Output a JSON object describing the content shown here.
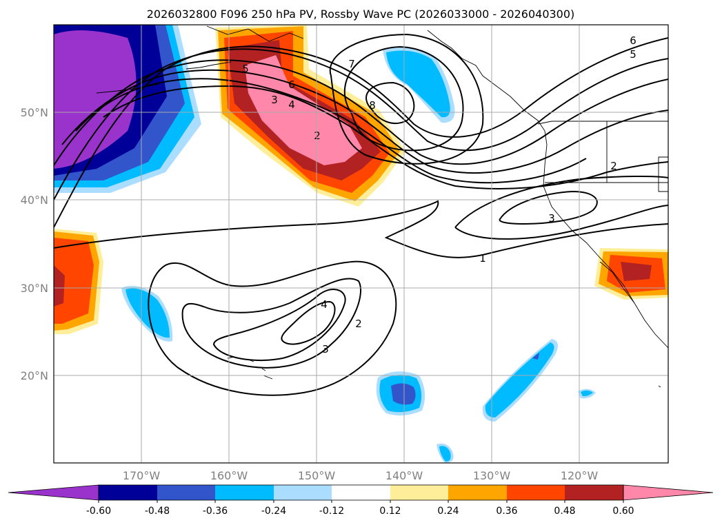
{
  "title": "2026032800 F096 250 hPa PV, Rossby Wave PC (2026033000 - 2026040300)",
  "lat_labels": [
    "50°N",
    "40°N",
    "30°N",
    "20°N"
  ],
  "lon_labels": [
    "170°W",
    "160°W",
    "150°W",
    "140°W",
    "130°W",
    "120°W"
  ],
  "colorbar": {
    "tick_labels": [
      "-0.60",
      "-0.48",
      "-0.36",
      "-0.24",
      "-0.12",
      "0.12",
      "0.24",
      "0.36",
      "0.48",
      "0.60"
    ],
    "colors": [
      "#9933cc",
      "#000099",
      "#3355cc",
      "#00bbff",
      "#aaddff",
      "#ffffff",
      "#ffee99",
      "#ffa500",
      "#ff4500",
      "#b22222",
      "#ff88aa"
    ]
  },
  "contour_labels": [
    "1",
    "2",
    "3",
    "4",
    "5",
    "6",
    "7",
    "8",
    "2",
    "3",
    "4",
    "2",
    "3",
    "5",
    "6"
  ]
}
